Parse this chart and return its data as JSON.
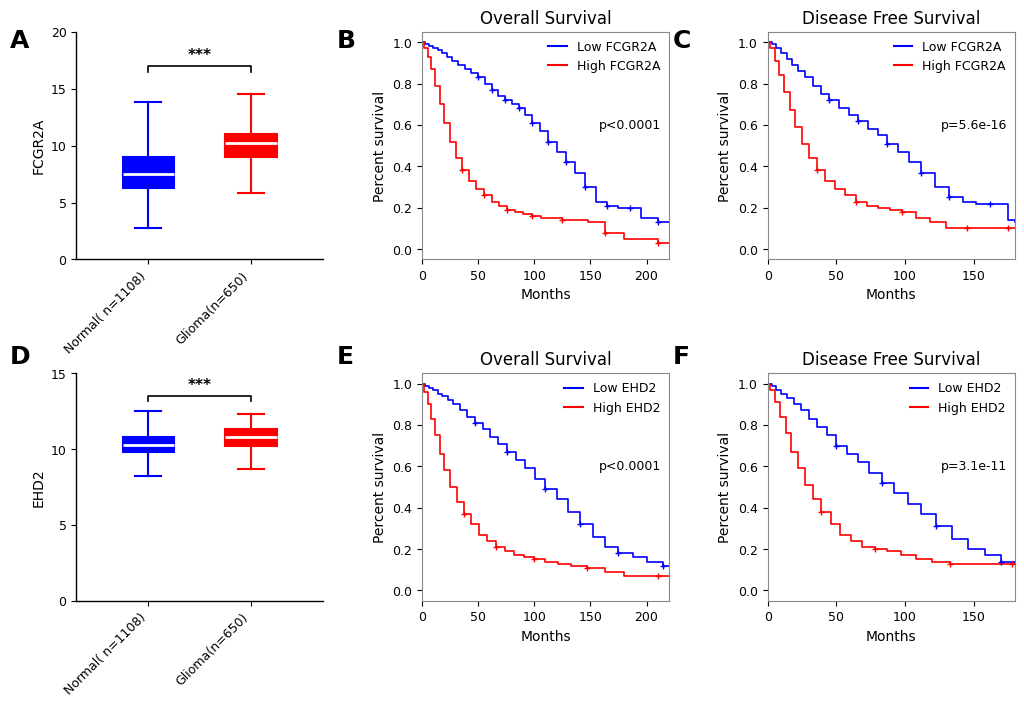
{
  "panel_label_fontsize": 18,
  "panel_label_weight": "bold",
  "boxplot_A": {
    "ylabel": "FCGR2A",
    "ylim": [
      0,
      20
    ],
    "yticks": [
      0,
      5,
      10,
      15,
      20
    ],
    "groups": [
      "Normal( n=1108)",
      "Glioma(n=650)"
    ],
    "colors": [
      "#0000FF",
      "#FF0000"
    ],
    "normal_box": {
      "whislo": 2.8,
      "q1": 6.3,
      "med": 7.5,
      "q3": 9.0,
      "whishi": 13.8
    },
    "glioma_box": {
      "whislo": 5.8,
      "q1": 9.0,
      "med": 10.2,
      "q3": 11.0,
      "whishi": 14.5
    },
    "sig_text": "***",
    "brac_y": 17.0,
    "brac_drop": 0.5
  },
  "boxplot_D": {
    "ylabel": "EHD2",
    "ylim": [
      0,
      15
    ],
    "yticks": [
      0,
      5,
      10,
      15
    ],
    "groups": [
      "Normal( n=1108)",
      "Glioma(n=650)"
    ],
    "colors": [
      "#0000FF",
      "#FF0000"
    ],
    "normal_box": {
      "whislo": 8.2,
      "q1": 9.8,
      "med": 10.3,
      "q3": 10.8,
      "whishi": 12.5
    },
    "glioma_box": {
      "whislo": 8.7,
      "q1": 10.2,
      "med": 10.8,
      "q3": 11.3,
      "whishi": 12.3
    },
    "sig_text": "***",
    "brac_y": 13.5,
    "brac_drop": 0.3
  },
  "km_B": {
    "title": "Overall Survival",
    "xlabel": "Months",
    "ylabel": "Percent survival",
    "xlim": [
      0,
      220
    ],
    "ylim": [
      -0.05,
      1.05
    ],
    "xticks": [
      0,
      50,
      100,
      150,
      200
    ],
    "yticks": [
      0.0,
      0.2,
      0.4,
      0.6,
      0.8,
      1.0
    ],
    "pvalue": "p<0.0001",
    "legend_labels": [
      "Low FCGR2A",
      "High FCGR2A"
    ],
    "low_t": [
      0,
      3,
      6,
      10,
      14,
      18,
      22,
      27,
      32,
      38,
      44,
      50,
      56,
      62,
      68,
      74,
      80,
      86,
      92,
      98,
      105,
      112,
      120,
      128,
      136,
      145,
      155,
      165,
      175,
      185,
      195,
      210,
      220
    ],
    "low_s": [
      1.0,
      0.99,
      0.98,
      0.97,
      0.96,
      0.95,
      0.93,
      0.91,
      0.89,
      0.87,
      0.85,
      0.83,
      0.8,
      0.77,
      0.74,
      0.72,
      0.7,
      0.68,
      0.65,
      0.61,
      0.57,
      0.52,
      0.47,
      0.42,
      0.37,
      0.3,
      0.23,
      0.21,
      0.2,
      0.2,
      0.15,
      0.13,
      0.13
    ],
    "low_censor_t": [
      50,
      62,
      74,
      86,
      98,
      112,
      128,
      145,
      165,
      185,
      210
    ],
    "low_censor_s": [
      0.83,
      0.77,
      0.72,
      0.68,
      0.61,
      0.52,
      0.42,
      0.3,
      0.21,
      0.2,
      0.13
    ],
    "high_t": [
      0,
      2,
      5,
      8,
      12,
      16,
      20,
      25,
      30,
      36,
      42,
      48,
      55,
      62,
      69,
      76,
      83,
      90,
      98,
      106,
      115,
      125,
      135,
      148,
      163,
      180,
      210,
      220
    ],
    "high_s": [
      1.0,
      0.97,
      0.93,
      0.87,
      0.79,
      0.7,
      0.61,
      0.52,
      0.44,
      0.38,
      0.33,
      0.29,
      0.26,
      0.23,
      0.21,
      0.19,
      0.18,
      0.17,
      0.16,
      0.15,
      0.15,
      0.14,
      0.14,
      0.13,
      0.08,
      0.05,
      0.03,
      0.03
    ],
    "high_censor_t": [
      36,
      55,
      76,
      98,
      125,
      163,
      210
    ],
    "high_censor_s": [
      0.38,
      0.26,
      0.19,
      0.16,
      0.14,
      0.08,
      0.03
    ]
  },
  "km_C": {
    "title": "Disease Free Survival",
    "xlabel": "Months",
    "ylabel": "Percent survival",
    "xlim": [
      0,
      180
    ],
    "ylim": [
      -0.05,
      1.05
    ],
    "xticks": [
      0,
      50,
      100,
      150
    ],
    "yticks": [
      0.0,
      0.2,
      0.4,
      0.6,
      0.8,
      1.0
    ],
    "pvalue": "p=5.6e-16",
    "legend_labels": [
      "Low FCGR2A",
      "High FCGR2A"
    ],
    "low_t": [
      0,
      3,
      6,
      10,
      14,
      18,
      22,
      27,
      33,
      39,
      45,
      52,
      59,
      66,
      73,
      80,
      87,
      95,
      103,
      112,
      122,
      132,
      142,
      152,
      162,
      175,
      180
    ],
    "low_s": [
      1.0,
      0.99,
      0.97,
      0.95,
      0.92,
      0.89,
      0.86,
      0.83,
      0.79,
      0.75,
      0.72,
      0.68,
      0.65,
      0.62,
      0.58,
      0.55,
      0.51,
      0.47,
      0.42,
      0.37,
      0.3,
      0.25,
      0.23,
      0.22,
      0.22,
      0.14,
      0.13
    ],
    "low_censor_t": [
      45,
      66,
      87,
      112,
      132,
      162
    ],
    "low_censor_s": [
      0.72,
      0.62,
      0.51,
      0.37,
      0.25,
      0.22
    ],
    "high_t": [
      0,
      2,
      5,
      8,
      12,
      16,
      20,
      25,
      30,
      36,
      42,
      49,
      56,
      64,
      72,
      80,
      89,
      98,
      108,
      118,
      130,
      145,
      160,
      175,
      180
    ],
    "high_s": [
      1.0,
      0.97,
      0.91,
      0.84,
      0.76,
      0.67,
      0.59,
      0.51,
      0.44,
      0.38,
      0.33,
      0.29,
      0.26,
      0.23,
      0.21,
      0.2,
      0.19,
      0.18,
      0.15,
      0.13,
      0.1,
      0.1,
      0.1,
      0.1,
      0.1
    ],
    "high_censor_t": [
      36,
      64,
      98,
      145,
      175
    ],
    "high_censor_s": [
      0.38,
      0.23,
      0.18,
      0.1,
      0.1
    ]
  },
  "km_E": {
    "title": "Overall Survival",
    "xlabel": "Months",
    "ylabel": "Percent survival",
    "xlim": [
      0,
      220
    ],
    "ylim": [
      -0.05,
      1.05
    ],
    "xticks": [
      0,
      50,
      100,
      150,
      200
    ],
    "yticks": [
      0.0,
      0.2,
      0.4,
      0.6,
      0.8,
      1.0
    ],
    "pvalue": "p<0.0001",
    "legend_labels": [
      "Low EHD2",
      "High EHD2"
    ],
    "low_t": [
      0,
      3,
      6,
      10,
      14,
      18,
      23,
      28,
      34,
      40,
      47,
      54,
      61,
      68,
      76,
      84,
      92,
      101,
      110,
      120,
      130,
      141,
      152,
      163,
      175,
      188,
      200,
      215,
      220
    ],
    "low_s": [
      1.0,
      0.99,
      0.98,
      0.97,
      0.95,
      0.94,
      0.92,
      0.9,
      0.87,
      0.84,
      0.81,
      0.78,
      0.74,
      0.71,
      0.67,
      0.63,
      0.59,
      0.54,
      0.49,
      0.44,
      0.38,
      0.32,
      0.26,
      0.21,
      0.18,
      0.16,
      0.14,
      0.12,
      0.12
    ],
    "low_censor_t": [
      47,
      76,
      110,
      141,
      175,
      215
    ],
    "low_censor_s": [
      0.81,
      0.67,
      0.49,
      0.32,
      0.18,
      0.12
    ],
    "high_t": [
      0,
      2,
      5,
      8,
      12,
      16,
      20,
      25,
      31,
      37,
      44,
      51,
      58,
      66,
      74,
      82,
      91,
      100,
      110,
      121,
      133,
      147,
      163,
      180,
      210,
      220
    ],
    "high_s": [
      1.0,
      0.96,
      0.9,
      0.83,
      0.75,
      0.66,
      0.58,
      0.5,
      0.43,
      0.37,
      0.32,
      0.27,
      0.24,
      0.21,
      0.19,
      0.17,
      0.16,
      0.15,
      0.14,
      0.13,
      0.12,
      0.11,
      0.09,
      0.07,
      0.07,
      0.07
    ],
    "high_censor_t": [
      37,
      66,
      100,
      147,
      210
    ],
    "high_censor_s": [
      0.37,
      0.21,
      0.15,
      0.11,
      0.07
    ]
  },
  "km_F": {
    "title": "Disease Free Survival",
    "xlabel": "Months",
    "ylabel": "Percent survival",
    "xlim": [
      0,
      180
    ],
    "ylim": [
      -0.05,
      1.05
    ],
    "xticks": [
      0,
      50,
      100,
      150
    ],
    "yticks": [
      0.0,
      0.2,
      0.4,
      0.6,
      0.8,
      1.0
    ],
    "pvalue": "p=3.1e-11",
    "legend_labels": [
      "Low EHD2",
      "High EHD2"
    ],
    "low_t": [
      0,
      3,
      6,
      10,
      14,
      19,
      24,
      30,
      36,
      43,
      50,
      58,
      66,
      74,
      83,
      92,
      102,
      112,
      123,
      134,
      146,
      158,
      170,
      180
    ],
    "low_s": [
      1.0,
      0.99,
      0.97,
      0.95,
      0.93,
      0.9,
      0.87,
      0.83,
      0.79,
      0.75,
      0.7,
      0.66,
      0.62,
      0.57,
      0.52,
      0.47,
      0.42,
      0.37,
      0.31,
      0.25,
      0.2,
      0.17,
      0.14,
      0.13
    ],
    "low_censor_t": [
      50,
      83,
      123,
      170
    ],
    "low_censor_s": [
      0.7,
      0.52,
      0.31,
      0.14
    ],
    "high_t": [
      0,
      2,
      5,
      9,
      13,
      17,
      22,
      27,
      33,
      39,
      46,
      53,
      61,
      69,
      78,
      87,
      97,
      108,
      120,
      133,
      148,
      163,
      178,
      180
    ],
    "high_s": [
      1.0,
      0.97,
      0.91,
      0.84,
      0.76,
      0.67,
      0.59,
      0.51,
      0.44,
      0.38,
      0.32,
      0.27,
      0.24,
      0.21,
      0.2,
      0.19,
      0.17,
      0.15,
      0.14,
      0.13,
      0.13,
      0.13,
      0.13,
      0.13
    ],
    "high_censor_t": [
      39,
      78,
      133,
      178
    ],
    "high_censor_s": [
      0.38,
      0.2,
      0.13,
      0.13
    ]
  },
  "blue_color": "#0000FF",
  "red_color": "#FF0000",
  "tick_fontsize": 9,
  "label_fontsize": 10,
  "title_fontsize": 12,
  "legend_fontsize": 9
}
